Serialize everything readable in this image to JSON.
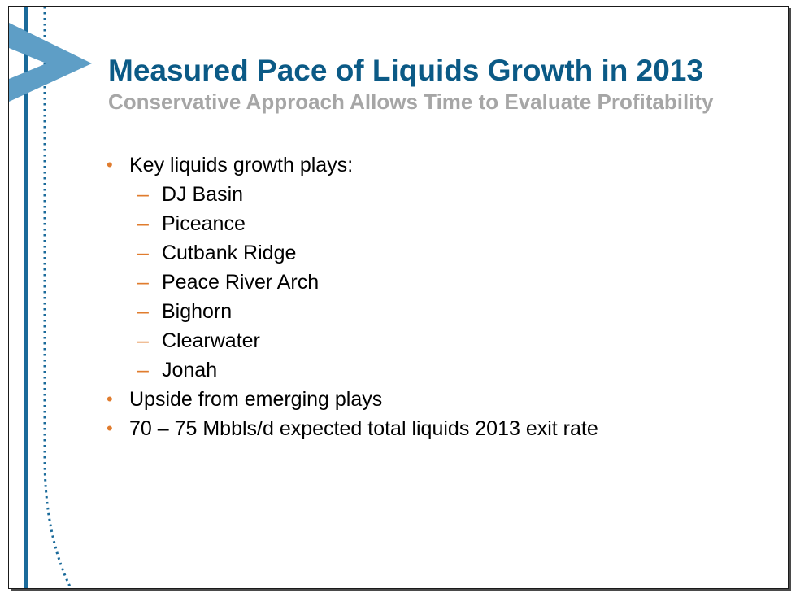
{
  "theme": {
    "title_color": "#0b5a86",
    "subtitle_color": "#a6a6a6",
    "accent_color": "#e07c2e",
    "brand_blue": "#1a6a9a",
    "chevron_color": "#5e9ec6"
  },
  "decoration": {
    "logo_icon": "chevron-right-icon"
  },
  "slide": {
    "title": "Measured Pace of Liquids Growth in 2013",
    "subtitle": "Conservative Approach Allows Time to Evaluate Profitability",
    "bullets": [
      {
        "marker": "•",
        "text": "Key liquids growth plays:",
        "sub": [
          {
            "marker": "–",
            "text": "DJ Basin"
          },
          {
            "marker": "–",
            "text": "Piceance"
          },
          {
            "marker": "–",
            "text": "Cutbank Ridge"
          },
          {
            "marker": "–",
            "text": "Peace River Arch"
          },
          {
            "marker": "–",
            "text": "Bighorn"
          },
          {
            "marker": "–",
            "text": "Clearwater"
          },
          {
            "marker": "–",
            "text": "Jonah"
          }
        ]
      },
      {
        "marker": "•",
        "text": "Upside from emerging plays"
      },
      {
        "marker": "•",
        "text": "70 – 75 Mbbls/d expected total liquids 2013 exit rate"
      }
    ]
  }
}
